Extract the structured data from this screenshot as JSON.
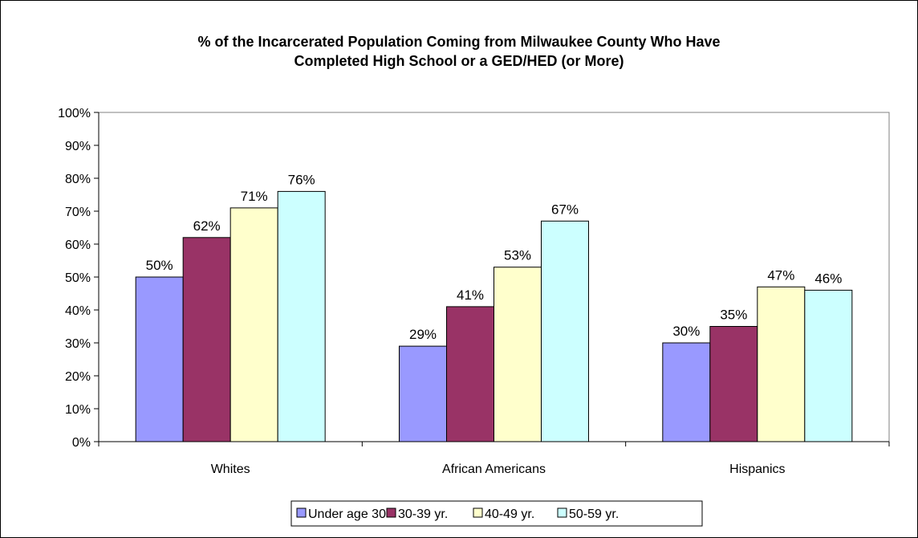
{
  "chart_data": {
    "type": "bar",
    "title_line1": "% of the Incarcerated Population Coming from Milwaukee County Who Have",
    "title_line2": "Completed High School or a GED/HED (or More)",
    "categories": [
      "Whites",
      "African Americans",
      "Hispanics"
    ],
    "series": [
      {
        "name": "Under age 30",
        "values": [
          50,
          29,
          30
        ],
        "color": "#9999ff"
      },
      {
        "name": "30-39 yr.",
        "values": [
          62,
          41,
          35
        ],
        "color": "#993366"
      },
      {
        "name": "40-49 yr.",
        "values": [
          71,
          53,
          47
        ],
        "color": "#ffffcc"
      },
      {
        "name": "50-59 yr.",
        "values": [
          76,
          67,
          46
        ],
        "color": "#ccffff"
      }
    ],
    "ylim": [
      0,
      100
    ],
    "yticks": [
      0,
      10,
      20,
      30,
      40,
      50,
      60,
      70,
      80,
      90,
      100
    ],
    "ytick_labels": [
      "0%",
      "10%",
      "20%",
      "30%",
      "40%",
      "50%",
      "60%",
      "70%",
      "80%",
      "90%",
      "100%"
    ],
    "data_labels": [
      [
        "50%",
        "29%",
        "30%"
      ],
      [
        "62%",
        "41%",
        "35%"
      ],
      [
        "71%",
        "53%",
        "47%"
      ],
      [
        "76%",
        "67%",
        "46%"
      ]
    ],
    "legend_position": "bottom",
    "grid": false
  }
}
